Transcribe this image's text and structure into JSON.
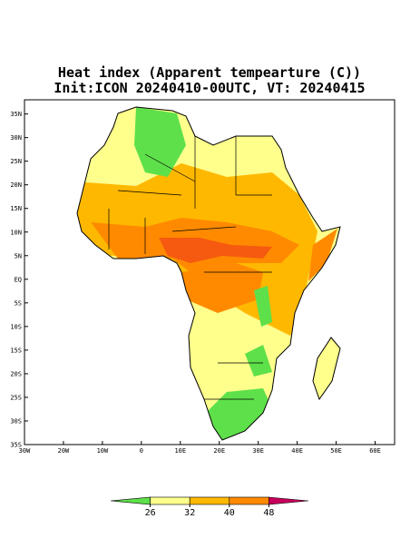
{
  "map": {
    "title": "Heat index (Apparent tempearture (C))",
    "subtitle": "Init:ICON 20240410-00UTC, VT: 20240415",
    "xlim": [
      -30,
      65
    ],
    "ylim": [
      -35,
      38
    ],
    "xticks": [
      {
        "value": -30,
        "label": "30W"
      },
      {
        "value": -20,
        "label": "20W"
      },
      {
        "value": -10,
        "label": "10W"
      },
      0,
      {
        "value": 10,
        "label": "10E"
      },
      {
        "value": 20,
        "label": "20E"
      },
      {
        "value": 30,
        "label": "30E"
      },
      {
        "value": 40,
        "label": "40E"
      },
      {
        "value": 50,
        "label": "50E"
      },
      {
        "value": 60,
        "label": "60E"
      }
    ],
    "yticks": [
      {
        "value": 35,
        "label": "35N"
      },
      {
        "value": 30,
        "label": "30N"
      },
      {
        "value": 25,
        "label": "25N"
      },
      {
        "value": 20,
        "label": "20N"
      },
      {
        "value": 15,
        "label": "15N"
      },
      {
        "value": 10,
        "label": "10N"
      },
      {
        "value": 5,
        "label": "5N"
      },
      {
        "value": 0,
        "label": "EQ"
      },
      {
        "value": -5,
        "label": "5S"
      },
      {
        "value": -10,
        "label": "10S"
      },
      {
        "value": -15,
        "label": "15S"
      },
      {
        "value": -20,
        "label": "20S"
      },
      {
        "value": -25,
        "label": "25S"
      },
      {
        "value": -30,
        "label": "30S"
      },
      {
        "value": -35,
        "label": "35S"
      }
    ]
  },
  "colorbar": {
    "levels": [
      26,
      32,
      40,
      48
    ],
    "colors": [
      "#5ee04a",
      "#ffff8c",
      "#ffb800",
      "#ff8a00",
      "#c8005a"
    ]
  }
}
